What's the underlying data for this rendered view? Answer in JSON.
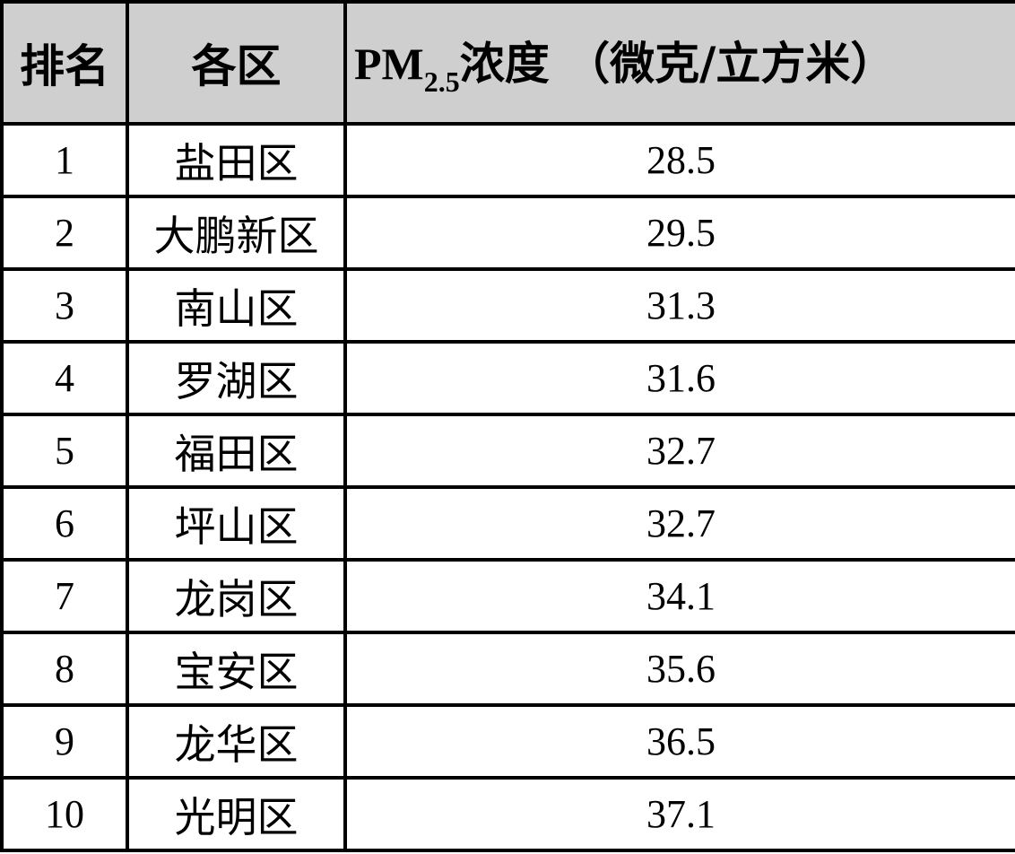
{
  "table": {
    "header": [
      "排名",
      "各区",
      {
        "main": "PM",
        "sub": "2.5",
        "rest": "浓度 （微克/立方米）"
      }
    ],
    "rows": [
      [
        1,
        "盐田区",
        28.5
      ],
      [
        2,
        "大鹏新区",
        29.5
      ],
      [
        3,
        "南山区",
        31.3
      ],
      [
        4,
        "罗湖区",
        31.6
      ],
      [
        5,
        "福田区",
        32.7
      ],
      [
        6,
        "坪山区",
        32.7
      ],
      [
        7,
        "龙岗区",
        34.1
      ],
      [
        8,
        "宝安区",
        35.6
      ],
      [
        9,
        "龙华区",
        36.5
      ],
      [
        10,
        "光明区",
        37.1
      ]
    ]
  }
}
